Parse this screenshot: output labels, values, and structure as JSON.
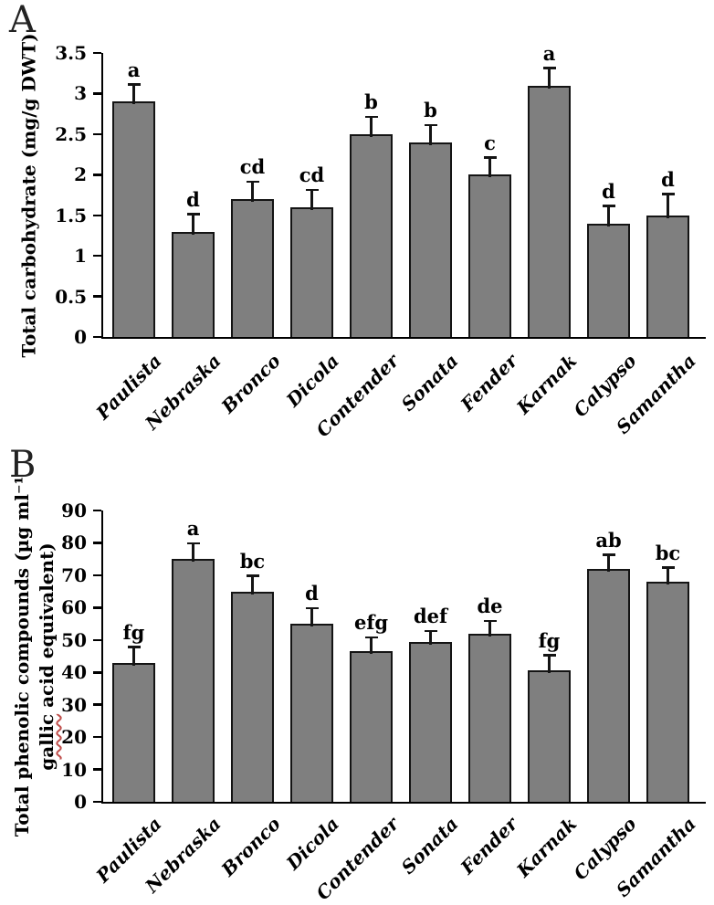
{
  "figure": {
    "panel_labels": [
      "A",
      "B"
    ]
  },
  "colors": {
    "bar_fill": "#7f7f7f",
    "bar_border": "#141414",
    "axis": "#000000",
    "spellcheck_underline": "#c0504d"
  },
  "chart_data": [
    {
      "type": "bar",
      "panel_label": "A",
      "title": "",
      "xlabel": "",
      "ylabel": "Total carbohydrate (mg/g DWT)",
      "ylim": [
        0,
        3.5
      ],
      "grid": false,
      "yticks": [
        0,
        0.5,
        1,
        1.5,
        2,
        2.5,
        3,
        3.5
      ],
      "ytick_labels": [
        "0",
        "0.5",
        "1",
        "1.5",
        "2",
        "2.5",
        "3",
        "3.5"
      ],
      "categories": [
        "Paulista",
        "Nebraska",
        "Bronco",
        "Dicola",
        "Contender",
        "Sonata",
        "Fender",
        "Karnak",
        "Calypso",
        "Samantha"
      ],
      "values": [
        2.9,
        1.3,
        1.7,
        1.6,
        2.5,
        2.4,
        2.0,
        3.1,
        1.4,
        1.5
      ],
      "errors": [
        0.2,
        0.2,
        0.2,
        0.2,
        0.2,
        0.2,
        0.2,
        0.2,
        0.2,
        0.25
      ],
      "sig_letters": [
        "a",
        "d",
        "cd",
        "cd",
        "b",
        "b",
        "c",
        "a",
        "d",
        "d"
      ]
    },
    {
      "type": "bar",
      "panel_label": "B",
      "title": "",
      "xlabel": "",
      "ylabel": "Total phenolic compounds (µg ml⁻¹ gallic acid equivalent)",
      "ylabel_line1": "Total phenolic compounds (µg ml⁻¹",
      "ylabel_line2_word": "gallic",
      "ylabel_line2_rest": " acid equivalent)",
      "ylim": [
        0,
        90
      ],
      "grid": false,
      "yticks": [
        0,
        10,
        20,
        30,
        40,
        50,
        60,
        70,
        80,
        90
      ],
      "ytick_labels": [
        "0",
        "10",
        "20",
        "30",
        "40",
        "50",
        "60",
        "70",
        "80",
        "90"
      ],
      "categories": [
        "Paulista",
        "Nebraska",
        "Bronco",
        "Dicola",
        "Contender",
        "Sonata",
        "Fender",
        "Karnak",
        "Calypso",
        "Samantha"
      ],
      "values": [
        43,
        75,
        65,
        55,
        46.5,
        49.5,
        52,
        40.5,
        72,
        68
      ],
      "errors": [
        4.5,
        4.5,
        4.5,
        4.5,
        4,
        3,
        3.5,
        4.5,
        4,
        4
      ],
      "sig_letters": [
        "fg",
        "a",
        "bc",
        "d",
        "efg",
        "def",
        "de",
        "fg",
        "ab",
        "bc"
      ]
    }
  ]
}
